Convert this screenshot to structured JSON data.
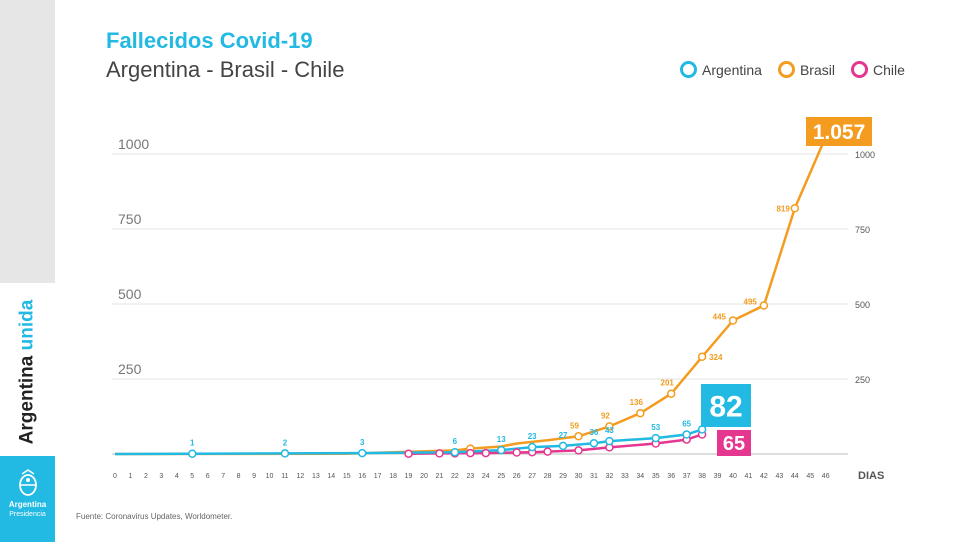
{
  "header": {
    "title": "Fallecidos Covid-19",
    "subtitle": "Argentina - Brasil - Chile"
  },
  "brand": {
    "word1": "Argentina",
    "word2": "unida",
    "logo_line1": "Argentina",
    "logo_line2": "Presidencia"
  },
  "source": "Fuente: Coronavirus Updates, Worldometer.",
  "colors": {
    "argentina": "#22b9e3",
    "brasil": "#f39c20",
    "chile": "#e5378f",
    "grid": "#e3e3e3"
  },
  "chart_data": {
    "type": "line",
    "title": "Fallecidos Covid-19",
    "subtitle": "Argentina - Brasil - Chile",
    "xlabel": "DIAS",
    "ylabel": "",
    "xlim": [
      0,
      46
    ],
    "ylim": [
      0,
      1000
    ],
    "x_ticks": [
      0,
      1,
      2,
      3,
      4,
      5,
      6,
      7,
      8,
      9,
      10,
      11,
      12,
      13,
      14,
      15,
      16,
      17,
      18,
      19,
      20,
      21,
      22,
      23,
      24,
      25,
      26,
      27,
      28,
      29,
      30,
      31,
      32,
      33,
      34,
      35,
      36,
      37,
      38,
      39,
      40,
      41,
      42,
      43,
      44,
      45,
      46
    ],
    "y_ticks_left": [
      "250",
      "500",
      "750",
      "1000"
    ],
    "y_ticks_right": [
      "250",
      "500",
      "750",
      "1000"
    ],
    "y_tick_values": [
      250,
      500,
      750,
      1000
    ],
    "grid": true,
    "legend": "top-right",
    "series": [
      {
        "name": "Argentina",
        "color": "#22b9e3",
        "x": [
          0,
          5,
          11,
          16,
          22,
          25,
          27,
          29,
          31,
          32,
          35,
          37,
          38
        ],
        "y": [
          0,
          1,
          2,
          3,
          6,
          13,
          23,
          27,
          36,
          43,
          53,
          65,
          82
        ],
        "labels": [
          "",
          "1",
          "2",
          "3",
          "6",
          "13",
          "23",
          "27",
          "36",
          "43",
          "53",
          "65",
          ""
        ],
        "marker_x": [
          5,
          11,
          16,
          22,
          25,
          27,
          29,
          31,
          32,
          35,
          37,
          38
        ],
        "end_label": "82"
      },
      {
        "name": "Brasil",
        "color": "#f39c20",
        "x": [
          0,
          15,
          22,
          23,
          25,
          26,
          28,
          30,
          32,
          34,
          36,
          38,
          40,
          42,
          44,
          46
        ],
        "y": [
          0,
          1,
          12,
          18,
          25,
          35,
          46,
          59,
          92,
          136,
          201,
          324,
          445,
          495,
          819,
          1057
        ],
        "labels": [
          "",
          "",
          "",
          "",
          "",
          "",
          "",
          "59",
          "92",
          "136",
          "201",
          "324",
          "445",
          "495",
          "819",
          ""
        ],
        "marker_x": [
          23,
          30,
          32,
          34,
          36,
          38,
          40,
          42,
          44,
          46
        ],
        "end_label": "1.057"
      },
      {
        "name": "Chile",
        "color": "#e5378f",
        "x": [
          19,
          21,
          22,
          23,
          24,
          25,
          26,
          27,
          28,
          30,
          32,
          35,
          37,
          38
        ],
        "y": [
          1,
          2,
          2,
          3,
          3,
          4,
          5,
          6,
          8,
          12,
          22,
          35,
          48,
          65
        ],
        "labels": [],
        "marker_x": [
          19,
          21,
          22,
          23,
          24,
          26,
          27,
          28,
          30,
          32,
          35,
          37,
          38
        ],
        "end_label": "65"
      }
    ]
  }
}
